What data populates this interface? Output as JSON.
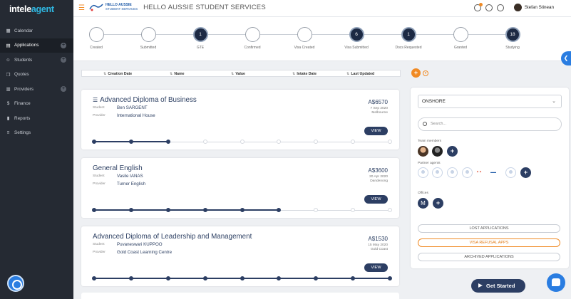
{
  "app": {
    "logo_main": "intele",
    "logo_accent": "agent"
  },
  "sidebar": {
    "items": [
      {
        "label": "Calendar",
        "icon": "calendar-icon",
        "has_add": false,
        "active": false
      },
      {
        "label": "Applications",
        "icon": "grid-icon",
        "has_add": true,
        "active": true
      },
      {
        "label": "Students",
        "icon": "users-icon",
        "has_add": true,
        "active": false
      },
      {
        "label": "Quotes",
        "icon": "quote-icon",
        "has_add": false,
        "active": false
      },
      {
        "label": "Providers",
        "icon": "building-icon",
        "has_add": true,
        "active": false
      },
      {
        "label": "Finance",
        "icon": "dollar-icon",
        "has_add": false,
        "active": false
      },
      {
        "label": "Reports",
        "icon": "chart-icon",
        "has_add": false,
        "active": false
      },
      {
        "label": "Settings",
        "icon": "settings-icon",
        "has_add": false,
        "active": false
      }
    ]
  },
  "header": {
    "brand_line1": "HELLO AUSSIE",
    "brand_line2": "STUDENT SERVICES",
    "title": "HELLO AUSSIE STUDENT SERVICES",
    "user_name": "Stefan Stinean"
  },
  "pipeline": {
    "stages": [
      {
        "label": "Created",
        "count": ""
      },
      {
        "label": "Submitted",
        "count": ""
      },
      {
        "label": "GTE",
        "count": "1"
      },
      {
        "label": "Confirmed",
        "count": ""
      },
      {
        "label": "Visa Created",
        "count": ""
      },
      {
        "label": "Visa Submitted",
        "count": "6"
      },
      {
        "label": "Docs Requested",
        "count": "1"
      },
      {
        "label": "Granted",
        "count": ""
      },
      {
        "label": "Studying",
        "count": "18"
      }
    ]
  },
  "sort": {
    "columns": [
      "Creation Date",
      "Name",
      "Value",
      "Intake Date",
      "Last Updated"
    ]
  },
  "applications": [
    {
      "title": "Advanced Diploma of Business",
      "student_label": "Student",
      "student": "Ben SARGENT",
      "provider_label": "Provider",
      "provider": "International House",
      "amount": "A$6570",
      "date": "7 Sep 2020",
      "location": "Melbourne",
      "view_label": "VIEW",
      "steps_total": 9,
      "steps_done": 3
    },
    {
      "title": "General English",
      "student_label": "Student",
      "student": "Vasile IANAS",
      "provider_label": "Provider",
      "provider": "Turner English",
      "amount": "A$3600",
      "date": "20 Apr 2020",
      "location": "Dandenong",
      "view_label": "VIEW",
      "steps_total": 9,
      "steps_done": 6
    },
    {
      "title": "Advanced Diploma of Leadership and Management",
      "student_label": "Student",
      "student": "Puvaneswari KUPPOO",
      "provider_label": "Provider",
      "provider": "Gold Coast Learning Centre",
      "amount": "A$1530",
      "date": "15 May 2020",
      "location": "Gold Coast",
      "view_label": "VIEW",
      "steps_total": 9,
      "steps_done": 9
    }
  ],
  "filters": {
    "location_select": "ONSHORE",
    "search_placeholder": "Search...",
    "team_members_label": "Team members",
    "partner_agents_label": "Partner agents",
    "offices_label": "Offices",
    "office_initial": "M",
    "lost_label": "LOST APPLICATIONS",
    "visa_refusal_label": "VISA REFUSAL APPS",
    "archived_label": "ARCHIVED APPLICATIONS"
  },
  "footer": {
    "get_started_label": "Get Started"
  },
  "colors": {
    "accent_orange": "#f08a24",
    "navy": "#2c3e63",
    "sidebar_bg": "#252a33",
    "brand_blue": "#2a7de1"
  }
}
